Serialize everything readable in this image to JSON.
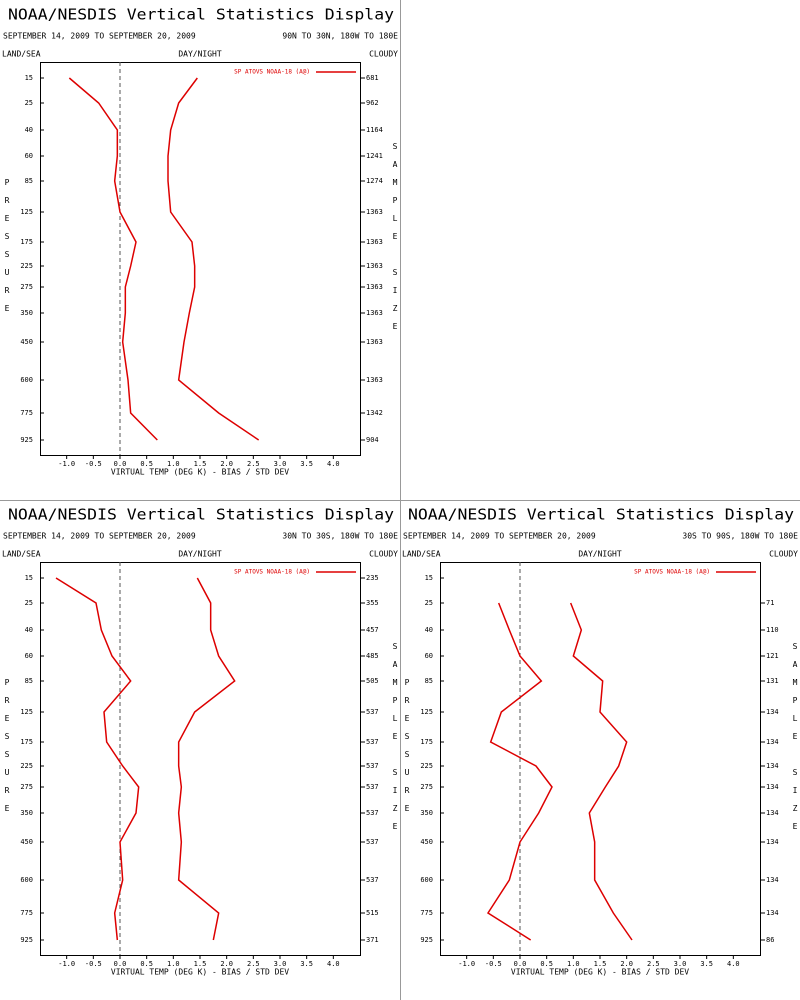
{
  "chart_data": [
    {
      "type": "line",
      "title": "NOAA/NESDIS Vertical Statistics Display",
      "subtitle": "SEPTEMBER 14, 2009 TO SEPTEMBER 20, 2009",
      "region": "90N TO 30N, 180W TO 180E",
      "land_sea": "LAND/SEA",
      "day_night": "DAY/NIGHT",
      "cloudy": "CLOUDY",
      "ylabel": "PRESSURE",
      "y2label": "SAMPLE SIZE",
      "xlabel": "VIRTUAL TEMP (DEG K) - BIAS / STD DEV",
      "categories": [
        "15",
        "25",
        "40",
        "60",
        "85",
        "125",
        "175",
        "225",
        "275",
        "350",
        "450",
        "600",
        "775",
        "925"
      ],
      "sample_sizes": [
        681,
        962,
        1164,
        1241,
        1274,
        1363,
        1363,
        1363,
        1363,
        1363,
        1363,
        1363,
        1342,
        904
      ],
      "xlim": [
        -1.5,
        4.5
      ],
      "xticks": [
        {
          "value": -1,
          "label": "-1.0"
        },
        {
          "value": -0.5,
          "label": "-0.5"
        },
        {
          "value": 0,
          "label": "0.0"
        },
        {
          "value": 0.5,
          "label": "0.5"
        },
        {
          "value": 1,
          "label": "1.0"
        },
        {
          "value": 1.5,
          "label": "1.5"
        },
        {
          "value": 2,
          "label": "2.0"
        },
        {
          "value": 2.5,
          "label": "2.5"
        },
        {
          "value": 3,
          "label": "3.0"
        },
        {
          "value": 3.5,
          "label": "3.5"
        },
        {
          "value": 4,
          "label": "4.0"
        }
      ],
      "series": [
        {
          "name": "SP ATOVS NOAA-18 (A@)",
          "color": "#dd0000",
          "values": [
            -0.95,
            -0.4,
            -0.05,
            -0.05,
            -0.1,
            0.0,
            0.3,
            0.2,
            0.1,
            0.1,
            0.05,
            0.15,
            0.2,
            0.7
          ]
        },
        {
          "color": "#dd0000",
          "values": [
            1.45,
            1.1,
            0.95,
            0.9,
            0.9,
            0.95,
            1.35,
            1.4,
            1.4,
            1.3,
            1.2,
            1.1,
            1.85,
            2.6
          ]
        }
      ]
    },
    {
      "type": "line",
      "title": "NOAA/NESDIS Vertical Statistics Display",
      "subtitle": "SEPTEMBER 14, 2009 TO SEPTEMBER 20, 2009",
      "region": "30N TO 30S, 180W TO 180E",
      "land_sea": "LAND/SEA",
      "day_night": "DAY/NIGHT",
      "cloudy": "CLOUDY",
      "ylabel": "PRESSURE",
      "y2label": "SAMPLE SIZE",
      "xlabel": "VIRTUAL TEMP (DEG K) - BIAS / STD DEV",
      "categories": [
        "15",
        "25",
        "40",
        "60",
        "85",
        "125",
        "175",
        "225",
        "275",
        "350",
        "450",
        "600",
        "775",
        "925"
      ],
      "sample_sizes": [
        235,
        355,
        457,
        485,
        505,
        537,
        537,
        537,
        537,
        537,
        537,
        537,
        515,
        371
      ],
      "xlim": [
        -1.5,
        4.5
      ],
      "xticks": [
        {
          "value": -1,
          "label": "-1.0"
        },
        {
          "value": -0.5,
          "label": "-0.5"
        },
        {
          "value": 0,
          "label": "0.0"
        },
        {
          "value": 0.5,
          "label": "0.5"
        },
        {
          "value": 1,
          "label": "1.0"
        },
        {
          "value": 1.5,
          "label": "1.5"
        },
        {
          "value": 2,
          "label": "2.0"
        },
        {
          "value": 2.5,
          "label": "2.5"
        },
        {
          "value": 3,
          "label": "3.0"
        },
        {
          "value": 3.5,
          "label": "3.5"
        },
        {
          "value": 4,
          "label": "4.0"
        }
      ],
      "series": [
        {
          "name": "SP ATOVS NOAA-18 (A@)",
          "color": "#dd0000",
          "values": [
            -1.2,
            -0.45,
            -0.35,
            -0.15,
            0.2,
            -0.3,
            -0.25,
            0.05,
            0.35,
            0.3,
            0.0,
            0.05,
            -0.1,
            -0.05
          ]
        },
        {
          "color": "#dd0000",
          "values": [
            1.45,
            1.7,
            1.7,
            1.85,
            2.15,
            1.4,
            1.1,
            1.1,
            1.15,
            1.1,
            1.15,
            1.1,
            1.85,
            1.75
          ]
        }
      ]
    },
    {
      "type": "line",
      "title": "NOAA/NESDIS Vertical Statistics Display",
      "subtitle": "SEPTEMBER 14, 2009 TO SEPTEMBER 20, 2009",
      "region": "30S TO 90S, 180W TO 180E",
      "land_sea": "LAND/SEA",
      "day_night": "DAY/NIGHT",
      "cloudy": "CLOUDY",
      "ylabel": "PRESSURE",
      "y2label": "SAMPLE SIZE",
      "xlabel": "VIRTUAL TEMP (DEG K) - BIAS / STD DEV",
      "categories": [
        "15",
        "25",
        "40",
        "60",
        "85",
        "125",
        "175",
        "225",
        "275",
        "350",
        "450",
        "600",
        "775",
        "925"
      ],
      "sample_sizes": [
        null,
        71,
        110,
        121,
        131,
        134,
        134,
        134,
        134,
        134,
        134,
        134,
        134,
        86
      ],
      "xlim": [
        -1.5,
        4.5
      ],
      "xticks": [
        {
          "value": -1,
          "label": "-1.0"
        },
        {
          "value": -0.5,
          "label": "-0.5"
        },
        {
          "value": 0,
          "label": "0.0"
        },
        {
          "value": 0.5,
          "label": "0.5"
        },
        {
          "value": 1,
          "label": "1.0"
        },
        {
          "value": 1.5,
          "label": "1.5"
        },
        {
          "value": 2,
          "label": "2.0"
        },
        {
          "value": 2.5,
          "label": "2.5"
        },
        {
          "value": 3,
          "label": "3.0"
        },
        {
          "value": 3.5,
          "label": "3.5"
        },
        {
          "value": 4,
          "label": "4.0"
        }
      ],
      "series": [
        {
          "name": "SP ATOVS NOAA-18 (A@)",
          "color": "#dd0000",
          "values": [
            null,
            -0.4,
            -0.2,
            0.0,
            0.4,
            -0.35,
            -0.55,
            0.3,
            0.6,
            0.35,
            0.0,
            -0.2,
            -0.6,
            0.2
          ]
        },
        {
          "color": "#dd0000",
          "values": [
            null,
            0.95,
            1.15,
            1.0,
            1.55,
            1.5,
            2.0,
            1.85,
            1.6,
            1.3,
            1.4,
            1.4,
            1.75,
            2.1
          ]
        }
      ]
    }
  ]
}
